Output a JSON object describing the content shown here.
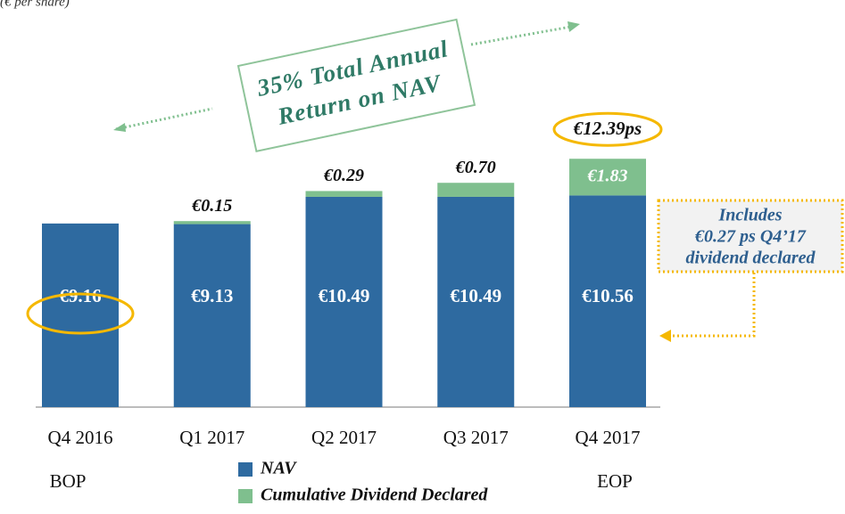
{
  "chart_data": {
    "type": "stacked_bar",
    "subtitle": "(€ per share)",
    "categories": [
      "Q4 2016",
      "Q1 2017",
      "Q2 2017",
      "Q3 2017",
      "Q4 2017"
    ],
    "period_labels": [
      "BOP",
      null,
      null,
      null,
      "EOP"
    ],
    "series": [
      {
        "name": "NAV",
        "color": "#2e6aa0",
        "values": [
          9.16,
          9.13,
          10.49,
          10.49,
          10.56
        ],
        "value_labels": [
          "€9.16",
          "€9.13",
          "€10.49",
          "€10.49",
          "€10.56"
        ]
      },
      {
        "name": "Cumulative Dividend Declared",
        "color": "#7fbf8e",
        "values": [
          null,
          0.15,
          0.29,
          0.7,
          1.83
        ],
        "value_labels": [
          null,
          "€0.15",
          "€0.29",
          "€0.70",
          "€1.83"
        ]
      }
    ],
    "total_label": "€12.39ps",
    "ylim": [
      0,
      20
    ],
    "return_note": [
      "35% Total Annual",
      "Return on NAV"
    ],
    "dividend_note": [
      "Includes",
      "€0.27 ps Q4’17",
      "dividend declared"
    ]
  }
}
